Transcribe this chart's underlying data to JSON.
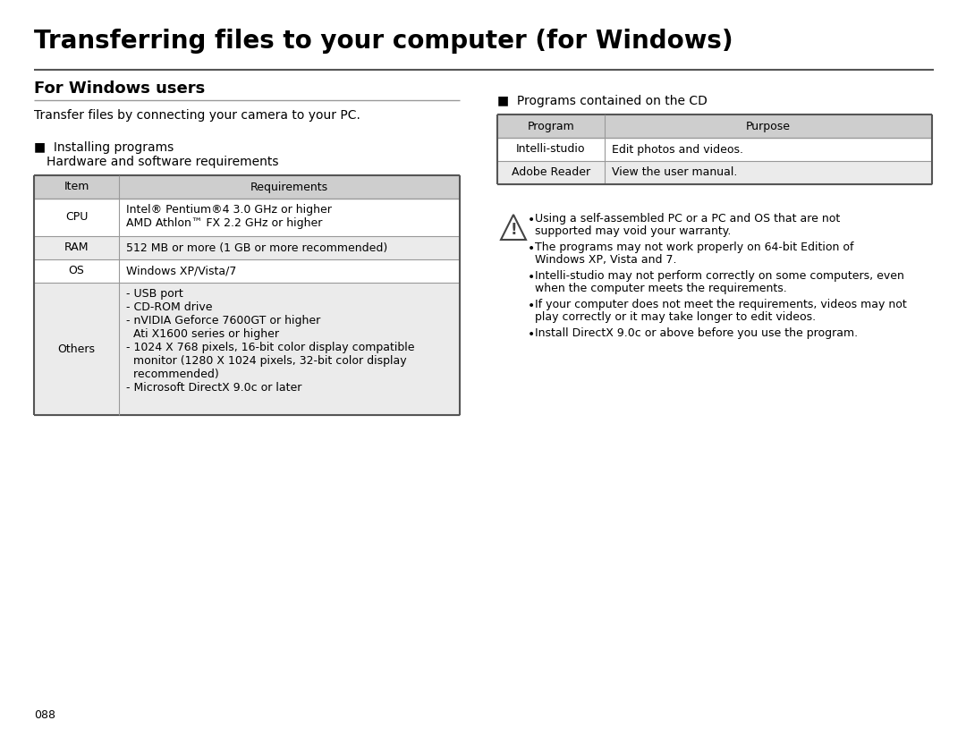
{
  "title": "Transferring files to your computer (for Windows)",
  "section_left": "For Windows users",
  "intro_text": "Transfer files by connecting your camera to your PC.",
  "bullet_installing": "Installing programs",
  "sub_installing": "Hardware and software requirements",
  "left_table_header": [
    "Item",
    "Requirements"
  ],
  "left_table_rows": [
    [
      "CPU",
      "Intel® Pentium®4 3.0 GHz or higher\nAMD Athlon™ FX 2.2 GHz or higher"
    ],
    [
      "RAM",
      "512 MB or more (1 GB or more recommended)"
    ],
    [
      "OS",
      "Windows XP/Vista/7"
    ],
    [
      "Others",
      "- USB port\n- CD-ROM drive\n- nVIDIA Geforce 7600GT or higher\n  Ati X1600 series or higher\n- 1024 X 768 pixels, 16-bit color display compatible\n  monitor (1280 X 1024 pixels, 32-bit color display\n  recommended)\n- Microsoft DirectX 9.0c or later"
    ]
  ],
  "section_right": "Programs contained on the CD",
  "right_table_header": [
    "Program",
    "Purpose"
  ],
  "right_table_rows": [
    [
      "Intelli-studio",
      "Edit photos and videos."
    ],
    [
      "Adobe Reader",
      "View the user manual."
    ]
  ],
  "warning_bullets": [
    "Using a self-assembled PC or a PC and OS that are not\nsupported may void your warranty.",
    "The programs may not work properly on 64-bit Edition of\nWindows XP, Vista and 7.",
    "Intelli-studio may not perform correctly on some computers, even\nwhen the computer meets the requirements.",
    "If your computer does not meet the requirements, videos may not\nplay correctly or it may take longer to edit videos.",
    "Install DirectX 9.0c or above before you use the program."
  ],
  "page_number": "088",
  "bg_color": "#ffffff",
  "header_bg": "#cecece",
  "row_bg_gray": "#ebebeb",
  "row_bg_white": "#ffffff",
  "text_color": "#000000",
  "line_color_dark": "#555555",
  "line_color_mid": "#999999"
}
